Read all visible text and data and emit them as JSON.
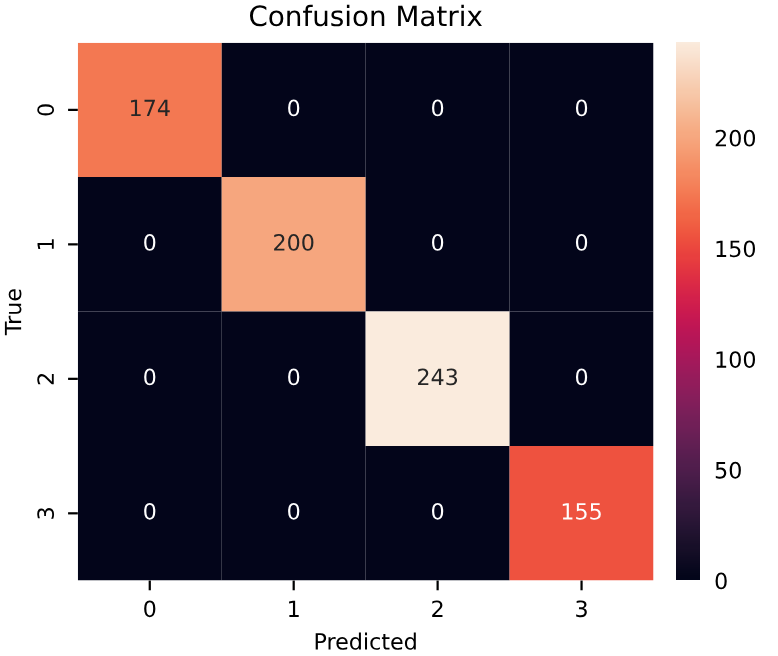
{
  "chart_data": {
    "type": "heatmap",
    "title": "Confusion Matrix",
    "xlabel": "Predicted",
    "ylabel": "True",
    "categories": [
      "0",
      "1",
      "2",
      "3"
    ],
    "y_categories": [
      "0",
      "1",
      "2",
      "3"
    ],
    "cells": [
      [
        174,
        0,
        0,
        0
      ],
      [
        0,
        200,
        0,
        0
      ],
      [
        0,
        0,
        243,
        0
      ],
      [
        0,
        0,
        0,
        155
      ]
    ],
    "clim": [
      0,
      243
    ],
    "cticks": [
      0,
      50,
      100,
      150,
      200
    ],
    "data_labels": true
  }
}
